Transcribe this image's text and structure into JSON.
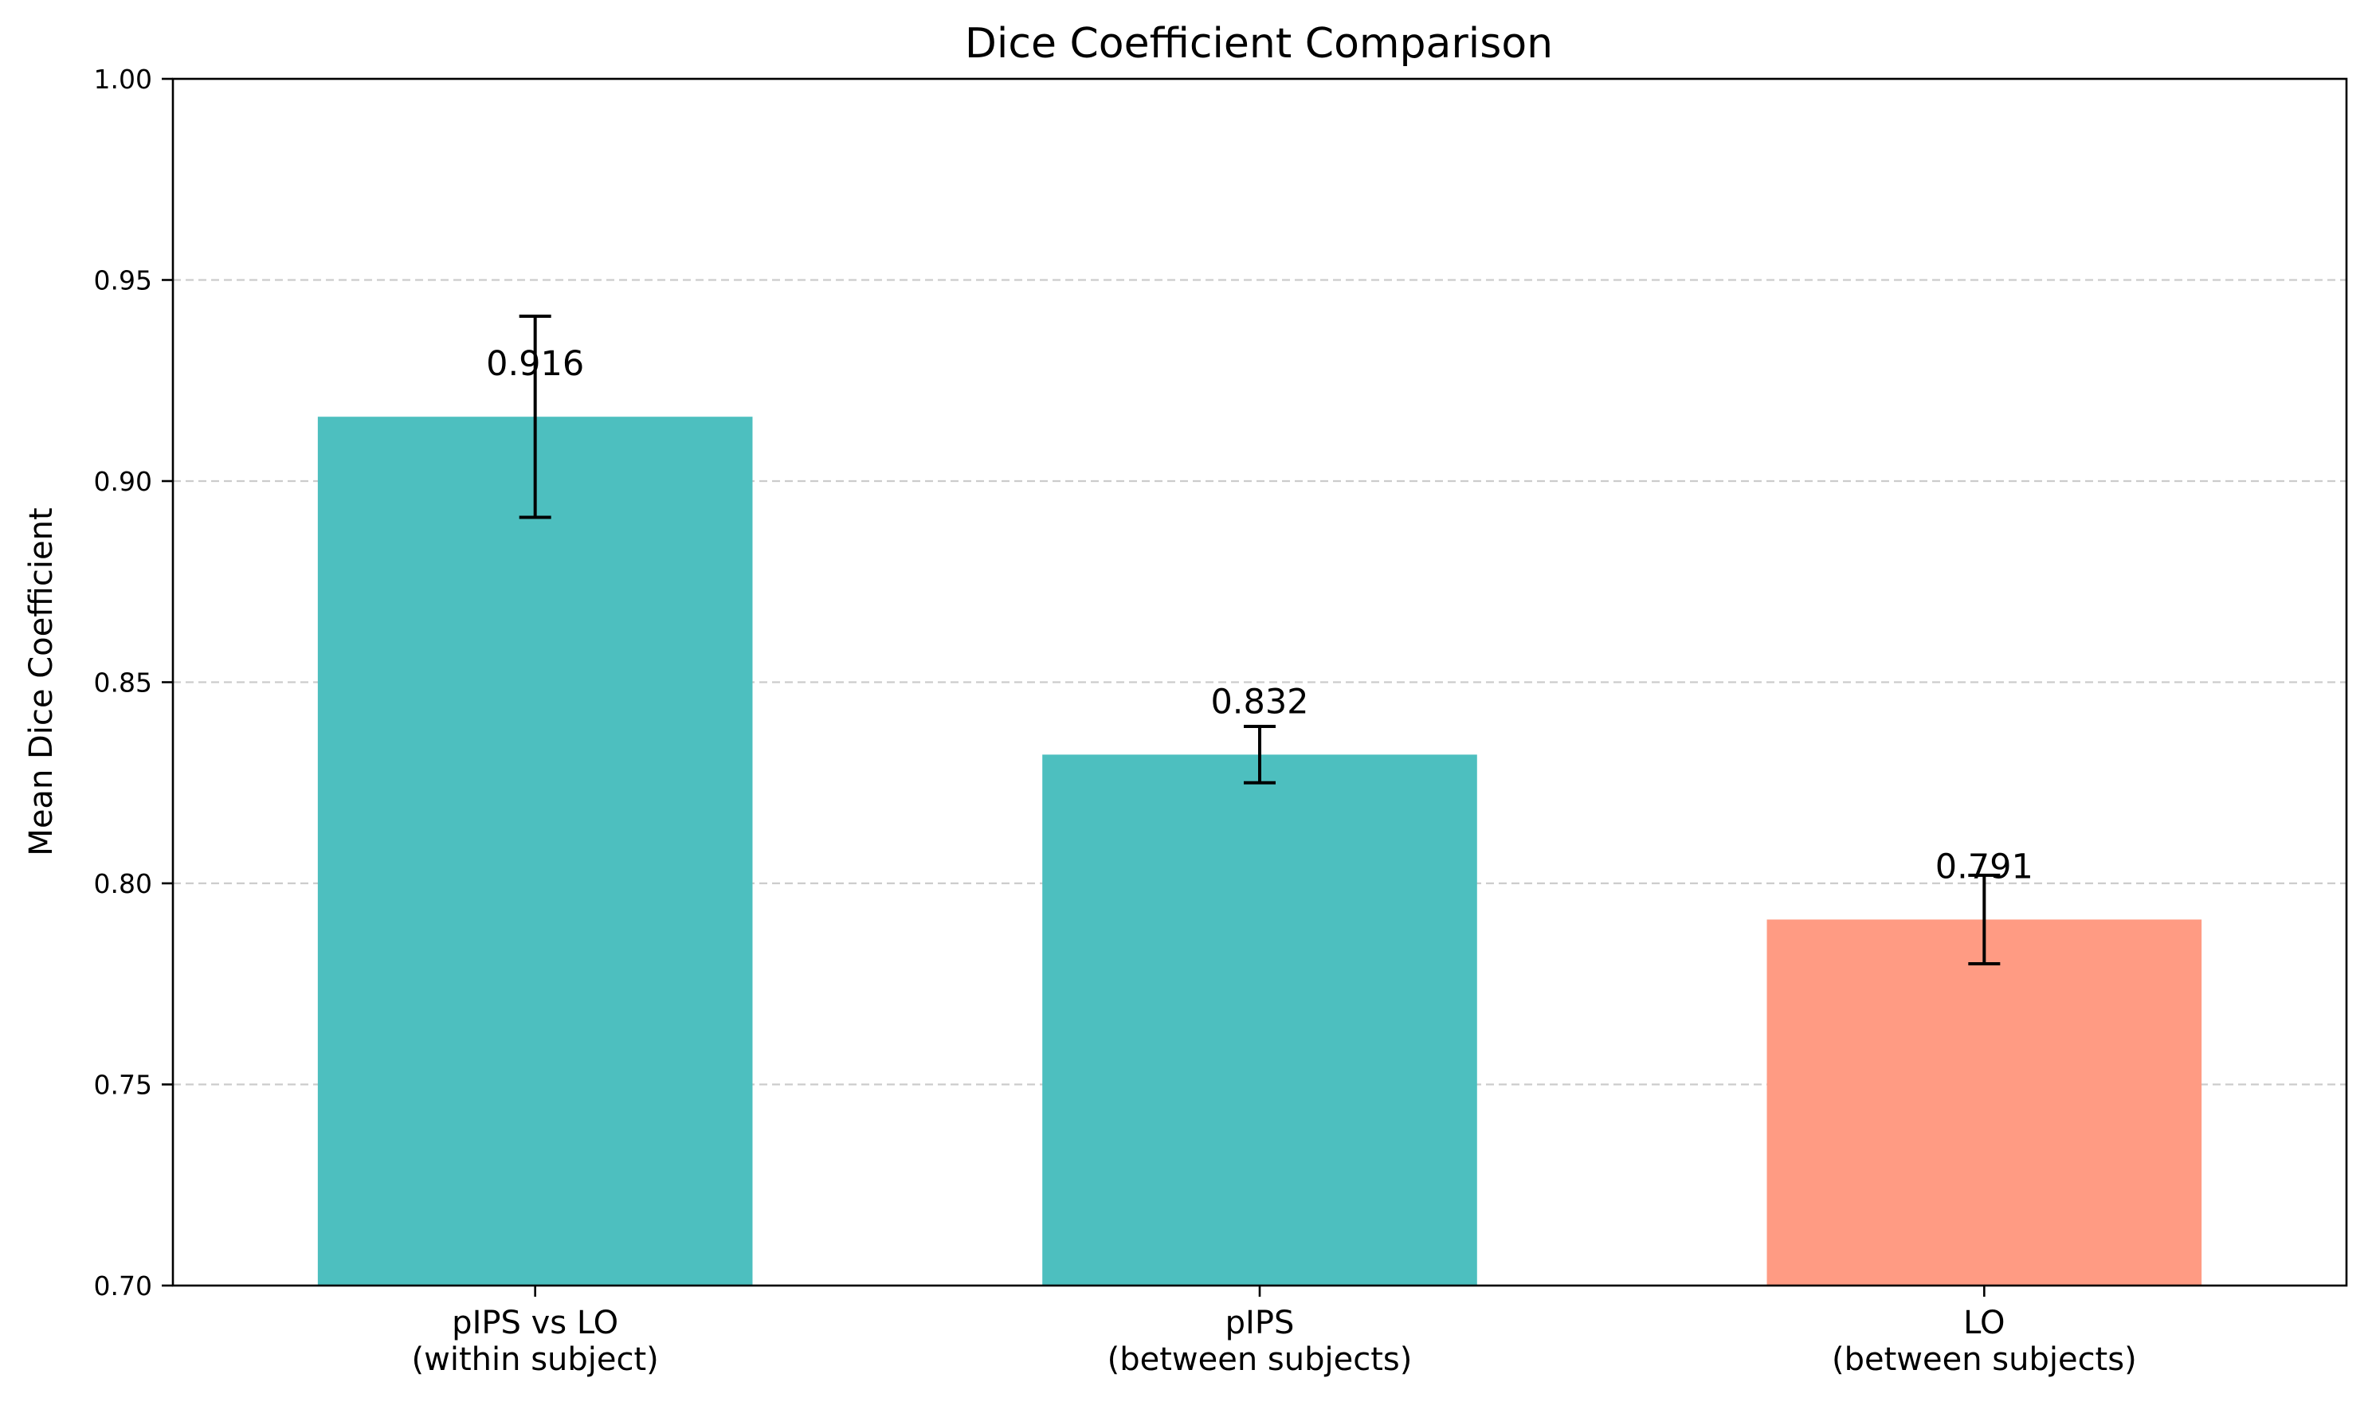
{
  "chart_data": {
    "type": "bar",
    "title": "Dice Coefficient Comparison",
    "xlabel": "",
    "ylabel": "Mean Dice Coefficient",
    "ylim": [
      0.7,
      1.0
    ],
    "yticks": [
      "0.70",
      "0.75",
      "0.80",
      "0.85",
      "0.90",
      "0.95",
      "1.00"
    ],
    "grid": "y-dashed",
    "legend": "none",
    "categories": [
      [
        "pIPS vs LO",
        "(within subject)"
      ],
      [
        "pIPS",
        "(between subjects)"
      ],
      [
        "LO",
        "(between subjects)"
      ]
    ],
    "values": [
      0.916,
      0.832,
      0.791
    ],
    "value_labels": [
      "0.916",
      "0.832",
      "0.791"
    ],
    "errors": [
      0.025,
      0.007,
      0.011
    ],
    "colors": [
      "#4dbfbf",
      "#4dbfbf",
      "#ff9b83"
    ]
  }
}
